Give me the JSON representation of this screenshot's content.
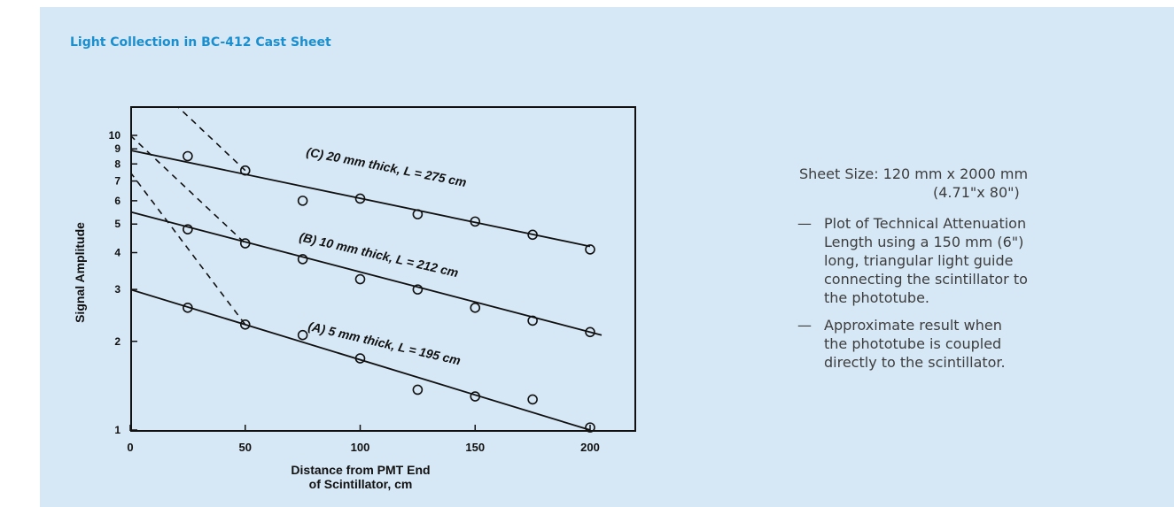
{
  "header": {
    "title": "Light Collection in BC-412 Cast Sheet"
  },
  "notes": {
    "sheet_size_label": "Sheet Size:",
    "sheet_size_value": "120 mm x 2000 mm",
    "sheet_size_inches": "(4.71\"x 80\")",
    "items": [
      {
        "dash": "—",
        "text": "Plot of Technical Attenuation Length using a 150 mm (6\") long, triangular light guide connecting the scintillator to the phototube."
      },
      {
        "dash": "—",
        "text": "Approximate result when the phototube is coupled directly to the scintillator."
      }
    ]
  },
  "chart_data": {
    "type": "scatter",
    "xlabel": [
      "Distance from PMT End",
      "of Scintillator, cm"
    ],
    "ylabel": "Signal Amplitude",
    "xlim": [
      0,
      215
    ],
    "ylim": [
      1,
      14.5
    ],
    "yscale": "log",
    "xticks": [
      "0",
      "50",
      "100",
      "150",
      "200"
    ],
    "yticks": [
      "1",
      "2",
      "3",
      "4",
      "5",
      "6",
      "7",
      "8",
      "9",
      "10"
    ],
    "grid": false,
    "series": [
      {
        "name": "(C) 20 mm thick, L = 275 cm",
        "x": [
          25,
          50,
          75,
          100,
          125,
          150,
          175,
          200
        ],
        "y": [
          8.5,
          7.6,
          6.0,
          6.1,
          5.4,
          5.1,
          4.6,
          4.1
        ],
        "fit_line": {
          "x": [
            0,
            200
          ],
          "y": [
            8.9,
            4.2
          ]
        },
        "light_guide_removed_curve": {
          "x": [
            12,
            50
          ],
          "y": [
            14.5,
            7.6
          ]
        }
      },
      {
        "name": "(B) 10 mm thick, L = 212 cm",
        "x": [
          25,
          50,
          75,
          100,
          125,
          150,
          175,
          200
        ],
        "y": [
          4.8,
          4.3,
          3.8,
          3.25,
          3.0,
          2.6,
          2.35,
          2.15
        ],
        "fit_line": {
          "x": [
            0,
            205
          ],
          "y": [
            5.5,
            2.1
          ]
        },
        "light_guide_removed_curve": {
          "x": [
            0,
            50
          ],
          "y": [
            10,
            4.3
          ]
        }
      },
      {
        "name": "(A) 5 mm thick, L = 195 cm",
        "x": [
          25,
          50,
          75,
          100,
          125,
          150,
          175,
          200
        ],
        "y": [
          2.6,
          2.28,
          2.1,
          1.75,
          1.37,
          1.3,
          1.27,
          1.02
        ],
        "fit_line": {
          "x": [
            0,
            200
          ],
          "y": [
            3.0,
            1.0
          ]
        },
        "light_guide_removed_curve": {
          "x": [
            0,
            50
          ],
          "y": [
            7.5,
            2.28
          ]
        }
      }
    ]
  }
}
